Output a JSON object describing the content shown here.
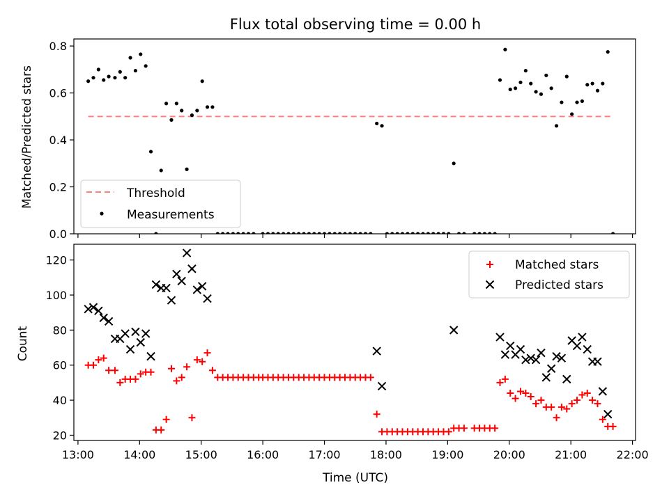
{
  "figure": {
    "title": "Flux total observing time = 0.00 h",
    "xlabel": "Time (UTC)"
  },
  "colors": {
    "threshold": "#ff7f7f",
    "measurements": "#000000",
    "matched": "#ff0000",
    "predicted": "#000000"
  },
  "chart_data": [
    {
      "type": "scatter",
      "title": "Flux total observing time = 0.00 h",
      "ylabel": "Matched/Predicted stars",
      "xlabel": "",
      "xlim": [
        "12:56",
        "22:03"
      ],
      "ylim": [
        0,
        0.83
      ],
      "yticks": [
        0.0,
        0.2,
        0.4,
        0.6,
        0.8
      ],
      "ytick_labels": [
        "0.0",
        "0.2",
        "0.4",
        "0.6",
        "0.8"
      ],
      "legend_position": "lower-left",
      "threshold": {
        "name": "Threshold",
        "value": 0.5,
        "x_start": "13:10",
        "x_end": "21:40"
      },
      "series": [
        {
          "name": "Measurements",
          "marker": "dot",
          "points": [
            [
              "13:10",
              0.65
            ],
            [
              "13:15",
              0.665
            ],
            [
              "13:20",
              0.7
            ],
            [
              "13:25",
              0.655
            ],
            [
              "13:30",
              0.67
            ],
            [
              "13:36",
              0.665
            ],
            [
              "13:41",
              0.69
            ],
            [
              "13:46",
              0.665
            ],
            [
              "13:51",
              0.75
            ],
            [
              "13:56",
              0.695
            ],
            [
              "14:01",
              0.765
            ],
            [
              "14:06",
              0.715
            ],
            [
              "14:11",
              0.35
            ],
            [
              "14:16",
              0.0
            ],
            [
              "14:21",
              0.27
            ],
            [
              "14:26",
              0.555
            ],
            [
              "14:31",
              0.485
            ],
            [
              "14:36",
              0.555
            ],
            [
              "14:41",
              0.525
            ],
            [
              "14:46",
              0.275
            ],
            [
              "14:51",
              0.505
            ],
            [
              "14:56",
              0.525
            ],
            [
              "15:01",
              0.65
            ],
            [
              "15:06",
              0.54
            ],
            [
              "15:11",
              0.54
            ],
            [
              "15:16",
              0.0
            ],
            [
              "15:21",
              0.0
            ],
            [
              "15:26",
              0.0
            ],
            [
              "15:31",
              0.0
            ],
            [
              "15:36",
              0.0
            ],
            [
              "15:41",
              0.0
            ],
            [
              "15:46",
              0.0
            ],
            [
              "15:51",
              0.0
            ],
            [
              "16:00",
              0.0
            ],
            [
              "16:05",
              0.0
            ],
            [
              "16:10",
              0.0
            ],
            [
              "16:15",
              0.0
            ],
            [
              "16:20",
              0.0
            ],
            [
              "16:25",
              0.0
            ],
            [
              "16:30",
              0.0
            ],
            [
              "16:35",
              0.0
            ],
            [
              "16:40",
              0.0
            ],
            [
              "16:45",
              0.0
            ],
            [
              "16:50",
              0.0
            ],
            [
              "16:55",
              0.0
            ],
            [
              "17:00",
              0.0
            ],
            [
              "17:05",
              0.0
            ],
            [
              "17:10",
              0.0
            ],
            [
              "17:15",
              0.0
            ],
            [
              "17:20",
              0.0
            ],
            [
              "17:25",
              0.0
            ],
            [
              "17:30",
              0.0
            ],
            [
              "17:35",
              0.0
            ],
            [
              "17:40",
              0.0
            ],
            [
              "17:45",
              0.0
            ],
            [
              "17:51",
              0.47
            ],
            [
              "17:56",
              0.46
            ],
            [
              "18:01",
              0.0
            ],
            [
              "18:06",
              0.0
            ],
            [
              "18:11",
              0.0
            ],
            [
              "18:16",
              0.0
            ],
            [
              "18:21",
              0.0
            ],
            [
              "18:26",
              0.0
            ],
            [
              "18:31",
              0.0
            ],
            [
              "18:36",
              0.0
            ],
            [
              "18:41",
              0.0
            ],
            [
              "18:46",
              0.0
            ],
            [
              "18:51",
              0.0
            ],
            [
              "18:56",
              0.0
            ],
            [
              "19:01",
              0.0
            ],
            [
              "19:06",
              0.3
            ],
            [
              "19:11",
              0.0
            ],
            [
              "19:16",
              0.0
            ],
            [
              "19:26",
              0.0
            ],
            [
              "19:31",
              0.0
            ],
            [
              "19:36",
              0.0
            ],
            [
              "19:41",
              0.0
            ],
            [
              "19:46",
              0.0
            ],
            [
              "19:51",
              0.655
            ],
            [
              "19:56",
              0.785
            ],
            [
              "20:01",
              0.615
            ],
            [
              "20:06",
              0.62
            ],
            [
              "20:11",
              0.645
            ],
            [
              "20:16",
              0.695
            ],
            [
              "20:21",
              0.64
            ],
            [
              "20:26",
              0.605
            ],
            [
              "20:31",
              0.595
            ],
            [
              "20:36",
              0.675
            ],
            [
              "20:41",
              0.62
            ],
            [
              "20:46",
              0.46
            ],
            [
              "20:51",
              0.56
            ],
            [
              "20:56",
              0.67
            ],
            [
              "21:01",
              0.51
            ],
            [
              "21:06",
              0.56
            ],
            [
              "21:11",
              0.565
            ],
            [
              "21:16",
              0.635
            ],
            [
              "21:21",
              0.64
            ],
            [
              "21:26",
              0.61
            ],
            [
              "21:31",
              0.64
            ],
            [
              "21:36",
              0.775
            ],
            [
              "21:41",
              0.0
            ]
          ]
        }
      ]
    },
    {
      "type": "scatter",
      "ylabel": "Count",
      "xlabel": "Time (UTC)",
      "xlim": [
        "12:56",
        "22:03"
      ],
      "ylim": [
        17,
        129
      ],
      "xticks": [
        "13:00",
        "14:00",
        "15:00",
        "16:00",
        "17:00",
        "18:00",
        "19:00",
        "20:00",
        "21:00",
        "22:00"
      ],
      "yticks": [
        20,
        40,
        60,
        80,
        100,
        120
      ],
      "ytick_labels": [
        "20",
        "40",
        "60",
        "80",
        "100",
        "120"
      ],
      "legend_position": "upper-right",
      "series": [
        {
          "name": "Matched stars",
          "marker": "plus",
          "points": [
            [
              "13:10",
              60
            ],
            [
              "13:15",
              60
            ],
            [
              "13:20",
              63
            ],
            [
              "13:25",
              64
            ],
            [
              "13:30",
              57
            ],
            [
              "13:36",
              57
            ],
            [
              "13:41",
              50
            ],
            [
              "13:46",
              52
            ],
            [
              "13:51",
              52
            ],
            [
              "13:56",
              52
            ],
            [
              "14:01",
              55
            ],
            [
              "14:06",
              56
            ],
            [
              "14:11",
              56
            ],
            [
              "14:16",
              23
            ],
            [
              "14:21",
              23
            ],
            [
              "14:26",
              29
            ],
            [
              "14:31",
              58
            ],
            [
              "14:36",
              51
            ],
            [
              "14:41",
              53
            ],
            [
              "14:46",
              59
            ],
            [
              "14:51",
              30
            ],
            [
              "14:56",
              63
            ],
            [
              "15:01",
              62
            ],
            [
              "15:06",
              67
            ],
            [
              "15:11",
              57
            ],
            [
              "15:16",
              53
            ],
            [
              "15:21",
              53
            ],
            [
              "15:26",
              53
            ],
            [
              "15:31",
              53
            ],
            [
              "15:36",
              53
            ],
            [
              "15:41",
              53
            ],
            [
              "15:46",
              53
            ],
            [
              "15:51",
              53
            ],
            [
              "15:56",
              53
            ],
            [
              "16:00",
              53
            ],
            [
              "16:05",
              53
            ],
            [
              "16:10",
              53
            ],
            [
              "16:15",
              53
            ],
            [
              "16:20",
              53
            ],
            [
              "16:25",
              53
            ],
            [
              "16:30",
              53
            ],
            [
              "16:35",
              53
            ],
            [
              "16:40",
              53
            ],
            [
              "16:45",
              53
            ],
            [
              "16:50",
              53
            ],
            [
              "16:55",
              53
            ],
            [
              "17:00",
              53
            ],
            [
              "17:05",
              53
            ],
            [
              "17:10",
              53
            ],
            [
              "17:15",
              53
            ],
            [
              "17:20",
              53
            ],
            [
              "17:25",
              53
            ],
            [
              "17:30",
              53
            ],
            [
              "17:35",
              53
            ],
            [
              "17:40",
              53
            ],
            [
              "17:45",
              53
            ],
            [
              "17:51",
              32
            ],
            [
              "17:56",
              22
            ],
            [
              "18:01",
              22
            ],
            [
              "18:06",
              22
            ],
            [
              "18:11",
              22
            ],
            [
              "18:16",
              22
            ],
            [
              "18:21",
              22
            ],
            [
              "18:26",
              22
            ],
            [
              "18:31",
              22
            ],
            [
              "18:36",
              22
            ],
            [
              "18:41",
              22
            ],
            [
              "18:46",
              22
            ],
            [
              "18:51",
              22
            ],
            [
              "18:56",
              22
            ],
            [
              "19:01",
              22
            ],
            [
              "19:06",
              24
            ],
            [
              "19:11",
              24
            ],
            [
              "19:16",
              24
            ],
            [
              "19:26",
              24
            ],
            [
              "19:31",
              24
            ],
            [
              "19:36",
              24
            ],
            [
              "19:41",
              24
            ],
            [
              "19:46",
              24
            ],
            [
              "19:51",
              50
            ],
            [
              "19:56",
              52
            ],
            [
              "20:01",
              44
            ],
            [
              "20:06",
              41
            ],
            [
              "20:11",
              45
            ],
            [
              "20:16",
              44
            ],
            [
              "20:21",
              42
            ],
            [
              "20:26",
              38
            ],
            [
              "20:31",
              40
            ],
            [
              "20:36",
              36
            ],
            [
              "20:41",
              36
            ],
            [
              "20:46",
              30
            ],
            [
              "20:51",
              36
            ],
            [
              "20:56",
              35
            ],
            [
              "21:01",
              38
            ],
            [
              "21:06",
              40
            ],
            [
              "21:11",
              43
            ],
            [
              "21:16",
              44
            ],
            [
              "21:21",
              40
            ],
            [
              "21:26",
              38
            ],
            [
              "21:31",
              29
            ],
            [
              "21:36",
              25
            ],
            [
              "21:41",
              25
            ]
          ]
        },
        {
          "name": "Predicted stars",
          "marker": "x",
          "points": [
            [
              "13:10",
              92
            ],
            [
              "13:15",
              93
            ],
            [
              "13:20",
              91
            ],
            [
              "13:25",
              87
            ],
            [
              "13:30",
              85
            ],
            [
              "13:36",
              75
            ],
            [
              "13:41",
              75
            ],
            [
              "13:46",
              78
            ],
            [
              "13:51",
              69
            ],
            [
              "13:56",
              79
            ],
            [
              "14:01",
              73
            ],
            [
              "14:06",
              78
            ],
            [
              "14:11",
              65
            ],
            [
              "14:16",
              106
            ],
            [
              "14:21",
              104
            ],
            [
              "14:26",
              104
            ],
            [
              "14:31",
              97
            ],
            [
              "14:36",
              112
            ],
            [
              "14:41",
              108
            ],
            [
              "14:46",
              124
            ],
            [
              "14:51",
              115
            ],
            [
              "14:56",
              103
            ],
            [
              "15:01",
              105
            ],
            [
              "15:06",
              98
            ],
            [
              "17:51",
              68
            ],
            [
              "17:56",
              48
            ],
            [
              "19:06",
              80
            ],
            [
              "19:51",
              76
            ],
            [
              "19:56",
              66
            ],
            [
              "20:01",
              71
            ],
            [
              "20:06",
              66
            ],
            [
              "20:11",
              69
            ],
            [
              "20:16",
              63
            ],
            [
              "20:21",
              64
            ],
            [
              "20:26",
              63
            ],
            [
              "20:31",
              67
            ],
            [
              "20:36",
              53
            ],
            [
              "20:41",
              58
            ],
            [
              "20:46",
              65
            ],
            [
              "20:51",
              64
            ],
            [
              "20:56",
              52
            ],
            [
              "21:01",
              74
            ],
            [
              "21:06",
              71
            ],
            [
              "21:11",
              76
            ],
            [
              "21:16",
              69
            ],
            [
              "21:21",
              62
            ],
            [
              "21:26",
              62
            ],
            [
              "21:31",
              45
            ],
            [
              "21:36",
              32
            ]
          ]
        }
      ]
    }
  ]
}
